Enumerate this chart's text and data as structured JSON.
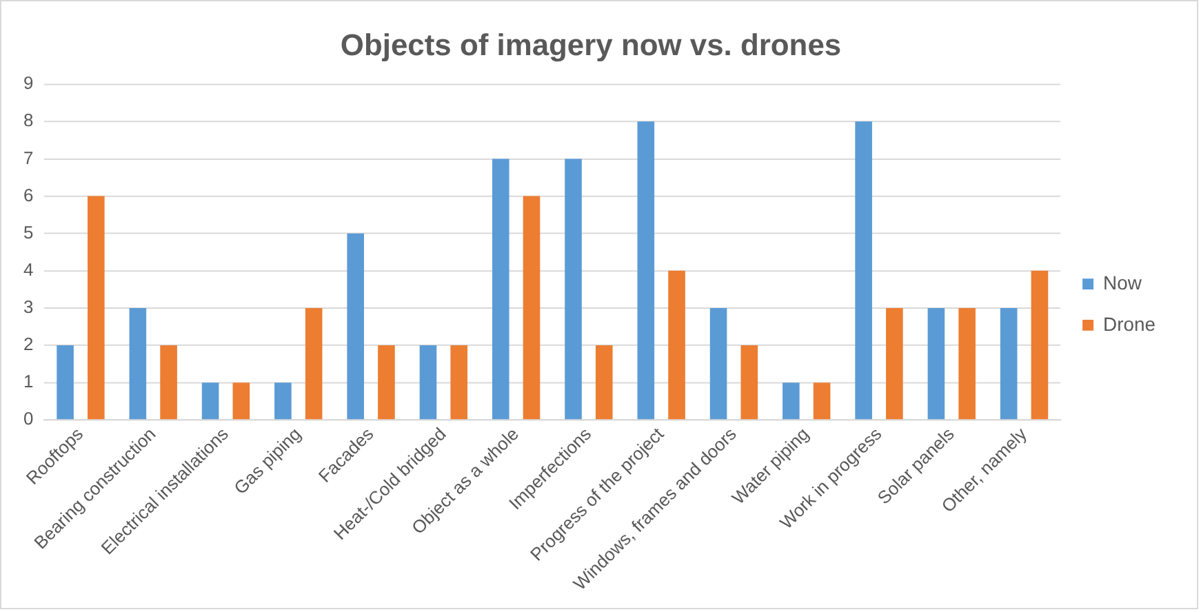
{
  "chart_data": {
    "type": "bar",
    "title": "Objects of imagery now vs. drones",
    "categories": [
      "Rooftops",
      "Bearing construction",
      "Electrical installations",
      "Gas piping",
      "Facades",
      "Heat-/Cold bridged",
      "Object as a whole",
      "Imperfections",
      "Progress of the project",
      "Windows, frames and doors",
      "Water piping",
      "Work in progress",
      "Solar panels",
      "Other, namely"
    ],
    "series": [
      {
        "name": "Now",
        "color": "#5b9bd5",
        "values": [
          2,
          3,
          1,
          1,
          5,
          2,
          7,
          7,
          8,
          3,
          1,
          8,
          3,
          3
        ]
      },
      {
        "name": "Drone",
        "color": "#ed7d31",
        "values": [
          6,
          2,
          1,
          3,
          2,
          2,
          6,
          2,
          4,
          2,
          1,
          3,
          3,
          4
        ]
      }
    ],
    "ylim": [
      0,
      9
    ],
    "yticks": [
      0,
      1,
      2,
      3,
      4,
      5,
      6,
      7,
      8,
      9
    ],
    "grid": "y",
    "legend": "right"
  }
}
